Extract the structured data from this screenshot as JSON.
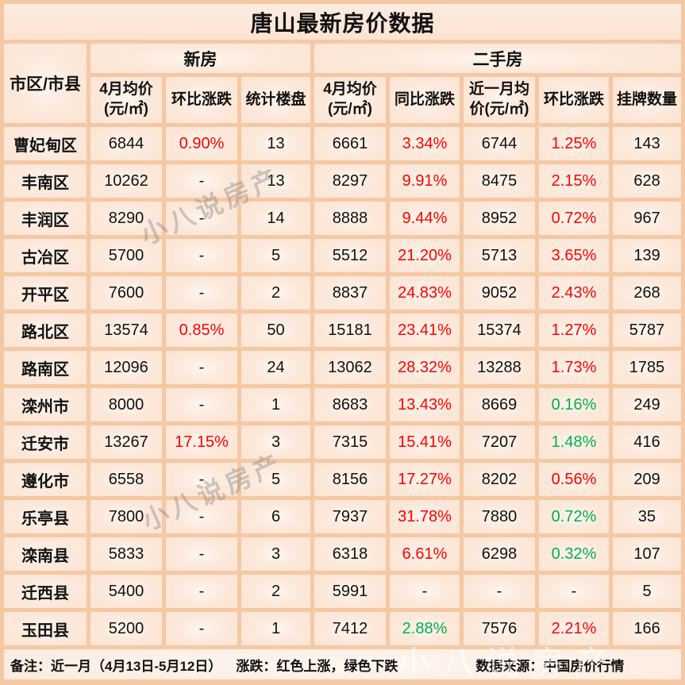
{
  "title": "唐山最新房价数据",
  "watermark": "小八说房产",
  "colors": {
    "up": "#fe0000",
    "down": "#00b050",
    "background": "#f5c8a4",
    "cell": "#fbe3d1"
  },
  "table": {
    "corner_header": "市区/市县",
    "group_headers": [
      {
        "label": "新房",
        "span": 3
      },
      {
        "label": "二手房",
        "span": 5
      }
    ],
    "column_headers": [
      "4月均价\n(元/㎡)",
      "环比涨跌",
      "统计楼盘",
      "4月均价\n(元/㎡)",
      "同比涨跌",
      "近一月均\n价(元/㎡)",
      "环比涨跌",
      "挂牌数量"
    ],
    "rows": [
      {
        "region": "曹妃甸区",
        "values": [
          "6844",
          "0.90%",
          "13",
          "6661",
          "3.34%",
          "6744",
          "1.25%",
          "143"
        ],
        "colors": [
          null,
          "up",
          null,
          null,
          "up",
          null,
          "up",
          null
        ]
      },
      {
        "region": "丰南区",
        "values": [
          "10262",
          "-",
          "13",
          "8297",
          "9.91%",
          "8475",
          "2.15%",
          "628"
        ],
        "colors": [
          null,
          null,
          null,
          null,
          "up",
          null,
          "up",
          null
        ]
      },
      {
        "region": "丰润区",
        "values": [
          "8290",
          "-",
          "14",
          "8888",
          "9.44%",
          "8952",
          "0.72%",
          "967"
        ],
        "colors": [
          null,
          null,
          null,
          null,
          "up",
          null,
          "up",
          null
        ]
      },
      {
        "region": "古冶区",
        "values": [
          "5700",
          "-",
          "5",
          "5512",
          "21.20%",
          "5713",
          "3.65%",
          "139"
        ],
        "colors": [
          null,
          null,
          null,
          null,
          "up",
          null,
          "up",
          null
        ]
      },
      {
        "region": "开平区",
        "values": [
          "7600",
          "-",
          "2",
          "8837",
          "24.83%",
          "9052",
          "2.43%",
          "268"
        ],
        "colors": [
          null,
          null,
          null,
          null,
          "up",
          null,
          "up",
          null
        ]
      },
      {
        "region": "路北区",
        "values": [
          "13574",
          "0.85%",
          "50",
          "15181",
          "23.41%",
          "15374",
          "1.27%",
          "5787"
        ],
        "colors": [
          null,
          "up",
          null,
          null,
          "up",
          null,
          "up",
          null
        ]
      },
      {
        "region": "路南区",
        "values": [
          "12096",
          "-",
          "24",
          "13062",
          "28.32%",
          "13288",
          "1.73%",
          "1785"
        ],
        "colors": [
          null,
          null,
          null,
          null,
          "up",
          null,
          "up",
          null
        ]
      },
      {
        "region": "滦州市",
        "values": [
          "8000",
          "-",
          "1",
          "8683",
          "13.43%",
          "8669",
          "0.16%",
          "249"
        ],
        "colors": [
          null,
          null,
          null,
          null,
          "up",
          null,
          "down",
          null
        ]
      },
      {
        "region": "迁安市",
        "values": [
          "13267",
          "17.15%",
          "3",
          "7315",
          "15.41%",
          "7207",
          "1.48%",
          "416"
        ],
        "colors": [
          null,
          "up",
          null,
          null,
          "up",
          null,
          "down",
          null
        ]
      },
      {
        "region": "遵化市",
        "values": [
          "6558",
          "-",
          "5",
          "8156",
          "17.27%",
          "8202",
          "0.56%",
          "209"
        ],
        "colors": [
          null,
          null,
          null,
          null,
          "up",
          null,
          "up",
          null
        ]
      },
      {
        "region": "乐亭县",
        "values": [
          "7800",
          "-",
          "6",
          "7937",
          "31.78%",
          "7880",
          "0.72%",
          "35"
        ],
        "colors": [
          null,
          null,
          null,
          null,
          "up",
          null,
          "down",
          null
        ]
      },
      {
        "region": "滦南县",
        "values": [
          "5833",
          "-",
          "3",
          "6318",
          "6.61%",
          "6298",
          "0.32%",
          "107"
        ],
        "colors": [
          null,
          null,
          null,
          null,
          "up",
          null,
          "down",
          null
        ]
      },
      {
        "region": "迁西县",
        "values": [
          "5400",
          "-",
          "2",
          "5991",
          "-",
          "-",
          "-",
          "5"
        ],
        "colors": [
          null,
          null,
          null,
          null,
          null,
          null,
          null,
          null
        ]
      },
      {
        "region": "玉田县",
        "values": [
          "5200",
          "-",
          "1",
          "7412",
          "2.88%",
          "7576",
          "2.21%",
          "166"
        ],
        "colors": [
          null,
          null,
          null,
          null,
          "down",
          null,
          "up",
          null
        ]
      }
    ]
  },
  "footer": {
    "remark": "备注：近一月（4月13日-5月12日）",
    "legend": "涨跌：红色上涨，绿色下跌",
    "source": "数据来源：中国房价行情"
  },
  "chart_data": {
    "type": "table",
    "title": "唐山最新房价数据",
    "column_groups": [
      {
        "label": "新房",
        "columns": [
          "4月均价(元/㎡)",
          "环比涨跌",
          "统计楼盘"
        ]
      },
      {
        "label": "二手房",
        "columns": [
          "4月均价(元/㎡)",
          "同比涨跌",
          "近一月均价(元/㎡)",
          "环比涨跌",
          "挂牌数量"
        ]
      }
    ],
    "columns": [
      "市区/市县",
      "新房4月均价(元/㎡)",
      "新房环比涨跌",
      "统计楼盘",
      "二手房4月均价(元/㎡)",
      "二手房同比涨跌",
      "二手房近一月均价(元/㎡)",
      "二手房环比涨跌",
      "挂牌数量"
    ],
    "rows": [
      [
        "曹妃甸区",
        "6844",
        "0.90%",
        "13",
        "6661",
        "3.34%",
        "6744",
        "1.25%",
        "143"
      ],
      [
        "丰南区",
        "10262",
        "-",
        "13",
        "8297",
        "9.91%",
        "8475",
        "2.15%",
        "628"
      ],
      [
        "丰润区",
        "8290",
        "-",
        "14",
        "8888",
        "9.44%",
        "8952",
        "0.72%",
        "967"
      ],
      [
        "古冶区",
        "5700",
        "-",
        "5",
        "5512",
        "21.20%",
        "5713",
        "3.65%",
        "139"
      ],
      [
        "开平区",
        "7600",
        "-",
        "2",
        "8837",
        "24.83%",
        "9052",
        "2.43%",
        "268"
      ],
      [
        "路北区",
        "13574",
        "0.85%",
        "50",
        "15181",
        "23.41%",
        "15374",
        "1.27%",
        "5787"
      ],
      [
        "路南区",
        "12096",
        "-",
        "24",
        "13062",
        "28.32%",
        "13288",
        "1.73%",
        "1785"
      ],
      [
        "滦州市",
        "8000",
        "-",
        "1",
        "8683",
        "13.43%",
        "8669",
        "0.16%",
        "249"
      ],
      [
        "迁安市",
        "13267",
        "17.15%",
        "3",
        "7315",
        "15.41%",
        "7207",
        "1.48%",
        "416"
      ],
      [
        "遵化市",
        "6558",
        "-",
        "5",
        "8156",
        "17.27%",
        "8202",
        "0.56%",
        "209"
      ],
      [
        "乐亭县",
        "7800",
        "-",
        "6",
        "7937",
        "31.78%",
        "7880",
        "0.72%",
        "35"
      ],
      [
        "滦南县",
        "5833",
        "-",
        "3",
        "6318",
        "6.61%",
        "6298",
        "0.32%",
        "107"
      ],
      [
        "迁西县",
        "5400",
        "-",
        "2",
        "5991",
        "-",
        "-",
        "-",
        "5"
      ],
      [
        "玉田县",
        "5200",
        "-",
        "1",
        "7412",
        "2.88%",
        "7576",
        "2.21%",
        "166"
      ]
    ],
    "legend": "红色上涨，绿色下跌",
    "notes": "近一月（4月13日-5月12日）；数据来源：中国房价行情"
  }
}
